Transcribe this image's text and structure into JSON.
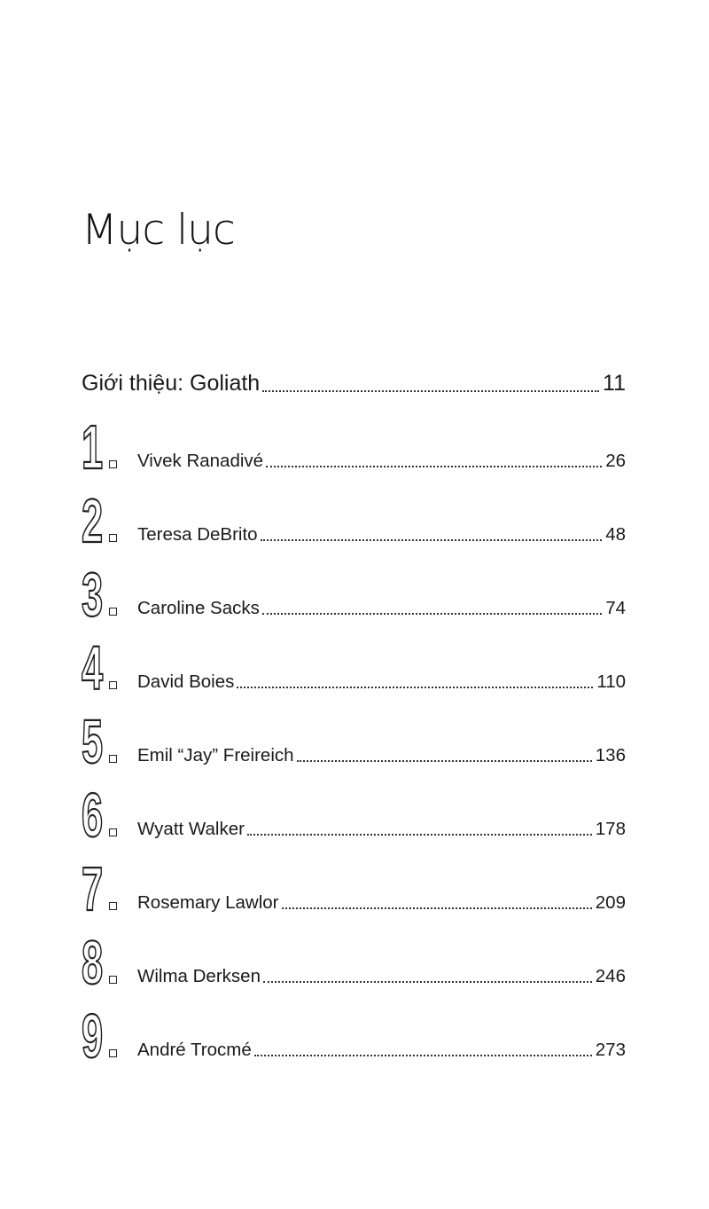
{
  "title": "Mục lục",
  "intro": {
    "label": "Giới thiệu: Goliath",
    "page": "11"
  },
  "chapters": [
    {
      "number": "1",
      "name": "Vivek Ranadivé",
      "page": "26"
    },
    {
      "number": "2",
      "name": "Teresa DeBrito",
      "page": "48"
    },
    {
      "number": "3",
      "name": "Caroline Sacks",
      "page": "74"
    },
    {
      "number": "4",
      "name": "David Boies",
      "page": "110"
    },
    {
      "number": "5",
      "name": "Emil “Jay” Freireich",
      "page": "136"
    },
    {
      "number": "6",
      "name": "Wyatt Walker",
      "page": "178"
    },
    {
      "number": "7",
      "name": "Rosemary Lawlor",
      "page": "209"
    },
    {
      "number": "8",
      "name": "Wilma Derksen",
      "page": "246"
    },
    {
      "number": "9",
      "name": "André Trocmé",
      "page": "273"
    }
  ]
}
